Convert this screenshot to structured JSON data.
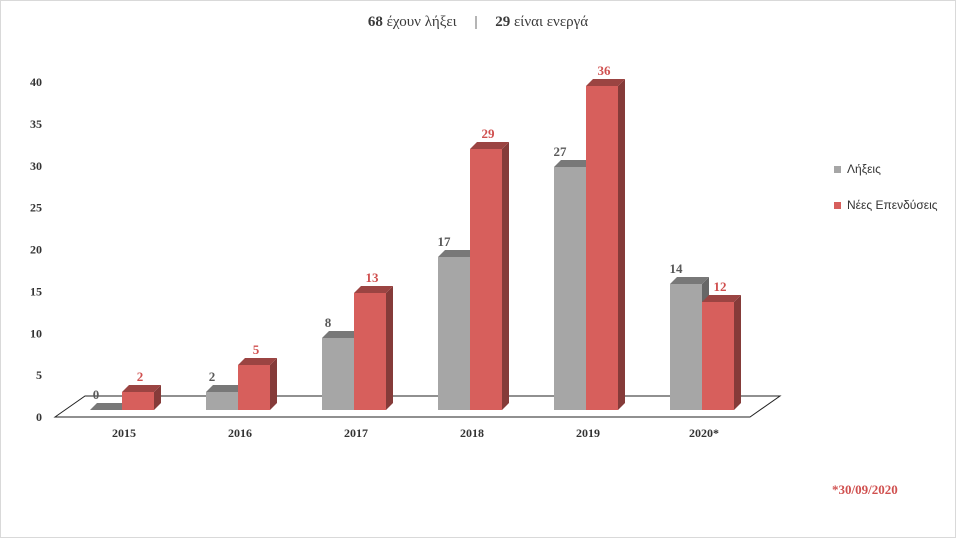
{
  "header": {
    "expired_count": "68",
    "expired_label": "έχουν λήξει",
    "separator": "|",
    "active_count": "29",
    "active_label": "είναι ενεργά"
  },
  "footnote": "*30/09/2020",
  "colors": {
    "expirations": "#a6a6a6",
    "new_investments": "#d75f5c",
    "label_red": "#d0504f",
    "label_gray": "#595959"
  },
  "chart_data": {
    "type": "bar",
    "categories": [
      "2015",
      "2016",
      "2017",
      "2018",
      "2019",
      "2020*"
    ],
    "series": [
      {
        "name": "Λήξεις",
        "values": [
          0,
          2,
          8,
          17,
          27,
          14
        ]
      },
      {
        "name": "Νέες Επενδύσεις",
        "values": [
          2,
          5,
          13,
          29,
          36,
          12
        ]
      }
    ],
    "ylim": [
      0,
      40
    ],
    "yticks": [
      0,
      5,
      10,
      15,
      20,
      25,
      30,
      35,
      40
    ],
    "legend": "right",
    "grid": false,
    "style": "3d-clustered-column"
  }
}
